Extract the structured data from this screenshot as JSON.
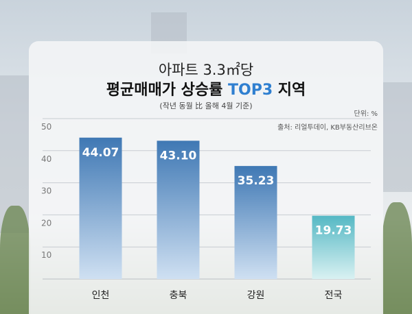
{
  "title_line1": "아파트 3.3㎡당",
  "title_line2_prefix": "평균매매가 상승률 ",
  "title_line2_highlight": "TOP3",
  "title_line2_suffix": " 지역",
  "subtitle": "(작년 동월 比 올해 4월 기준)",
  "unit": "단위: %",
  "source": "출처: 리얼투데이, KB부동산리브온",
  "colors": {
    "bar_blue": "#3f78b4",
    "bar_teal": "#55b8c4",
    "highlight": "#2f7fd0"
  },
  "chart_data": {
    "type": "bar",
    "categories": [
      "인천",
      "충북",
      "강원",
      "전국"
    ],
    "values": [
      44.07,
      43.1,
      35.23,
      19.73
    ],
    "value_labels": [
      "44.07",
      "43.10",
      "35.23",
      "19.73"
    ],
    "ylim": [
      0,
      50
    ],
    "yticks": [
      10,
      20,
      30,
      40,
      50
    ],
    "grid": true
  }
}
